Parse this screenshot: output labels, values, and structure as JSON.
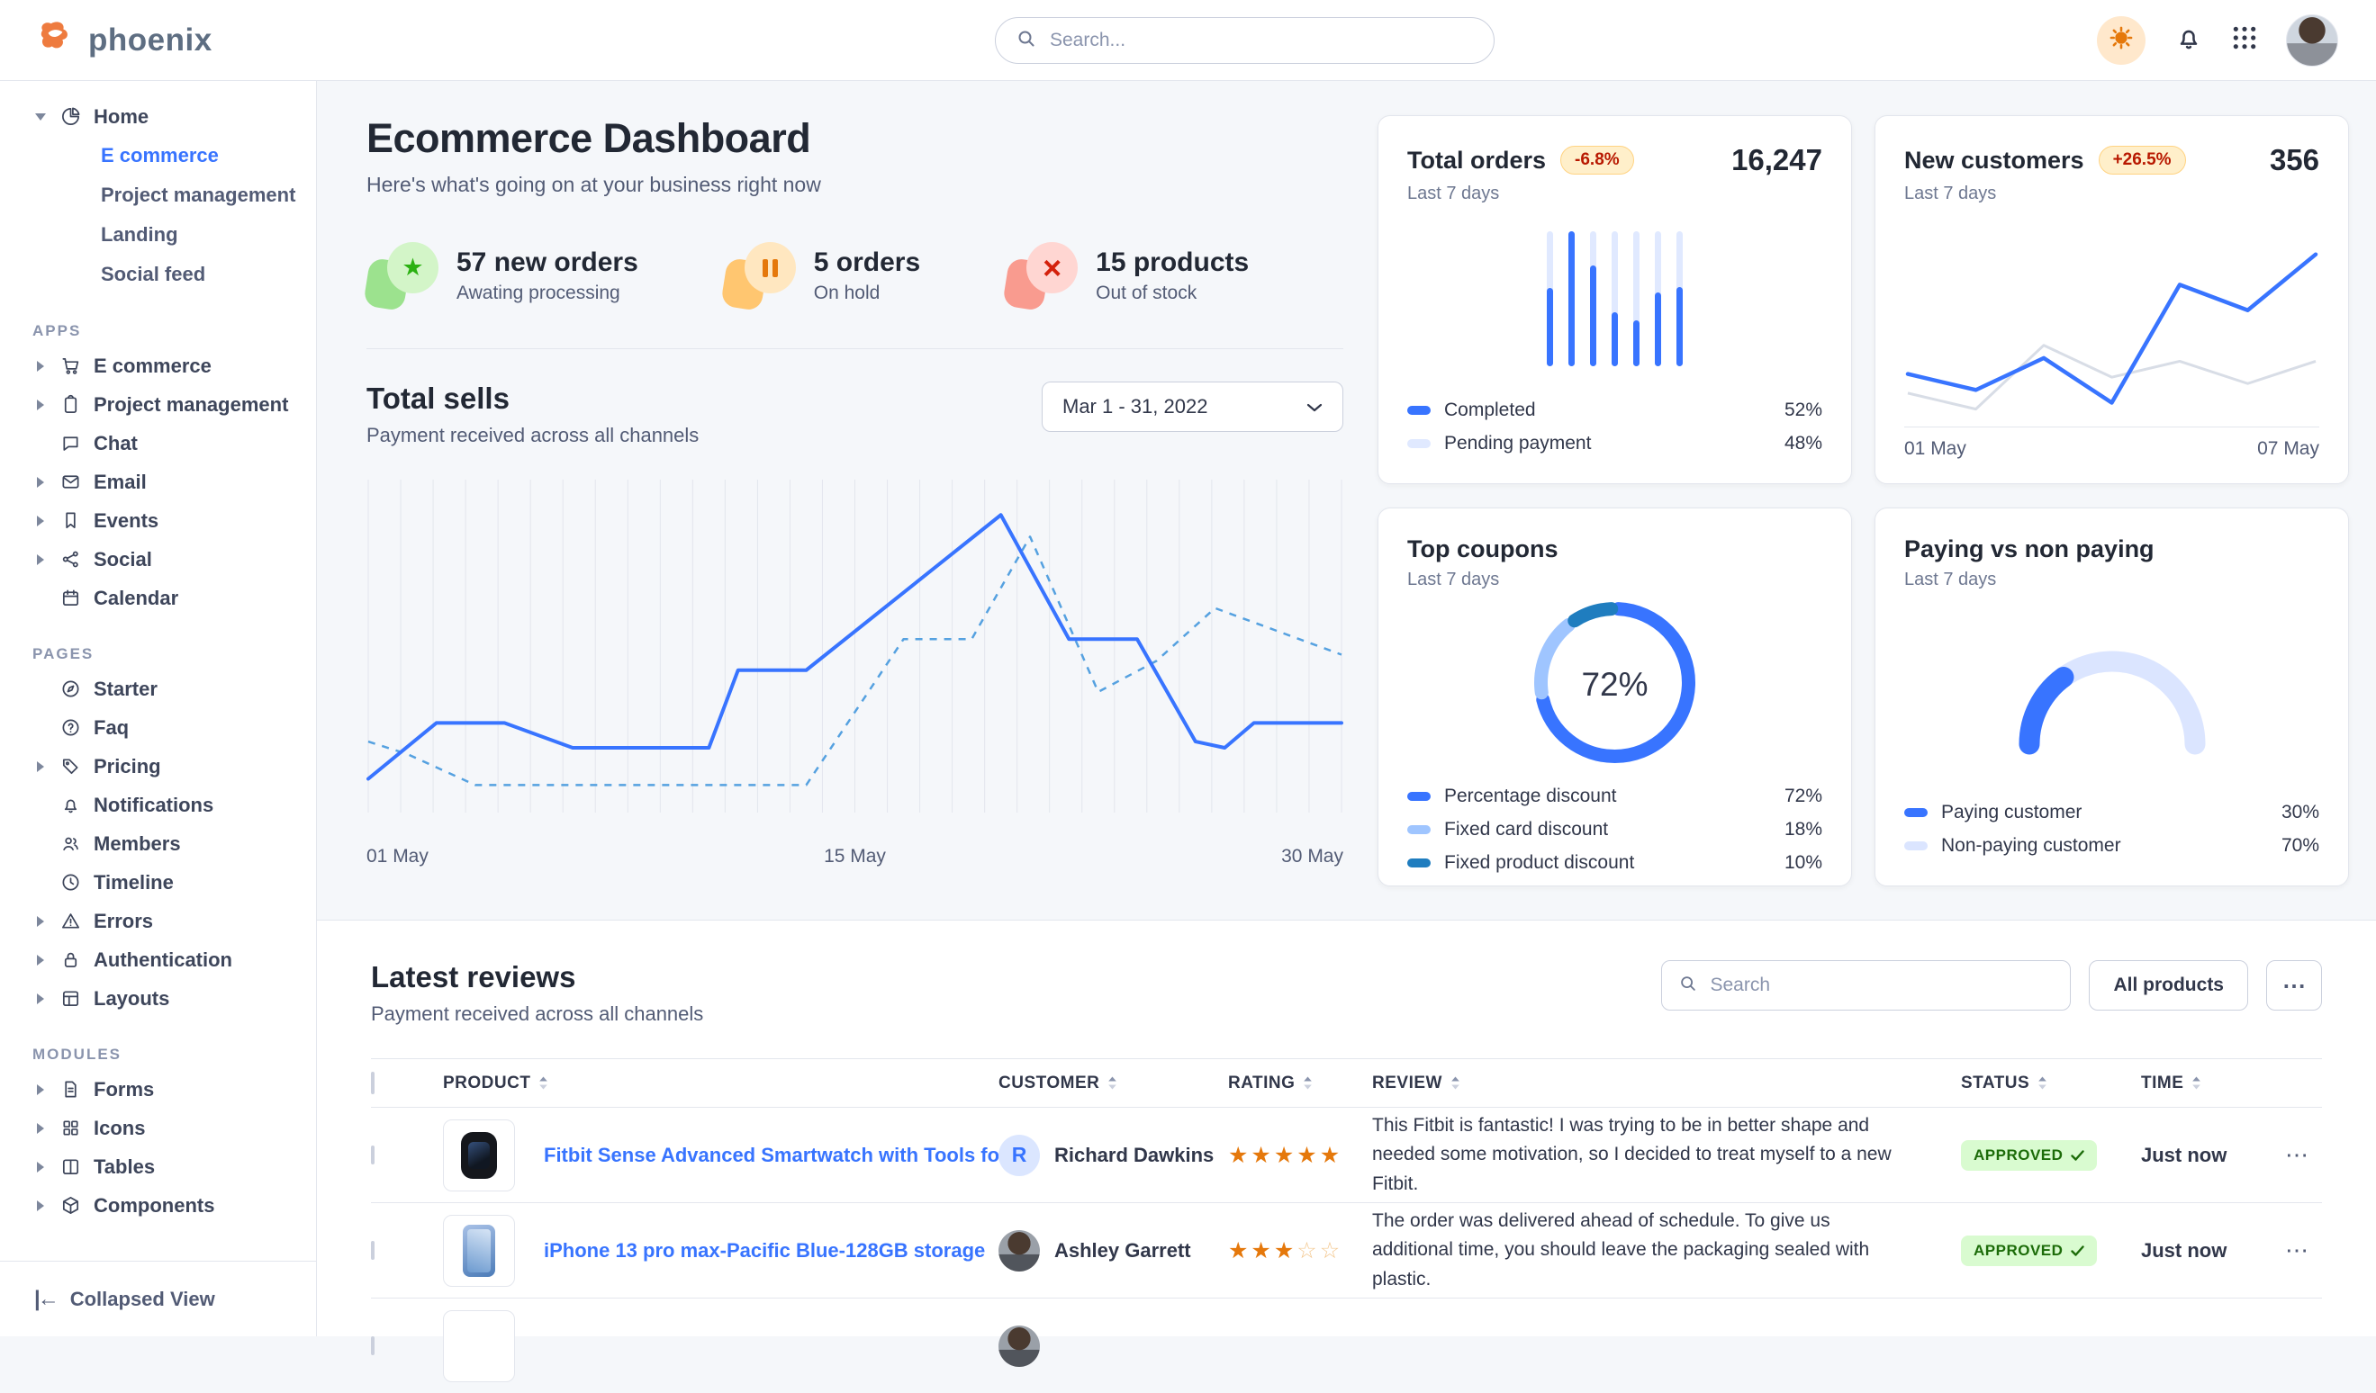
{
  "navbar": {
    "brand": "phoenix",
    "search_placeholder": "Search...",
    "icons": [
      "phoenix-logo",
      "search-icon",
      "sun-icon",
      "bell-icon",
      "apps-grid-icon",
      "avatar"
    ]
  },
  "sidebar": {
    "home": {
      "label": "Home",
      "icon": "pie-chart",
      "children": [
        "E commerce",
        "Project management",
        "Landing",
        "Social feed"
      ],
      "active_child": "E commerce"
    },
    "sections": [
      {
        "label": "APPS",
        "items": [
          {
            "label": "E commerce",
            "icon": "cart",
            "caret": true
          },
          {
            "label": "Project management",
            "icon": "clipboard",
            "caret": true
          },
          {
            "label": "Chat",
            "icon": "chat",
            "caret": false
          },
          {
            "label": "Email",
            "icon": "mail",
            "caret": true
          },
          {
            "label": "Events",
            "icon": "bookmark",
            "caret": true
          },
          {
            "label": "Social",
            "icon": "share",
            "caret": true
          },
          {
            "label": "Calendar",
            "icon": "calendar",
            "caret": false
          }
        ]
      },
      {
        "label": "PAGES",
        "items": [
          {
            "label": "Starter",
            "icon": "compass",
            "caret": false
          },
          {
            "label": "Faq",
            "icon": "help",
            "caret": false
          },
          {
            "label": "Pricing",
            "icon": "tag",
            "caret": true
          },
          {
            "label": "Notifications",
            "icon": "bell",
            "caret": false
          },
          {
            "label": "Members",
            "icon": "users",
            "caret": false
          },
          {
            "label": "Timeline",
            "icon": "clock",
            "caret": false
          },
          {
            "label": "Errors",
            "icon": "warning",
            "caret": true
          },
          {
            "label": "Authentication",
            "icon": "lock",
            "caret": true
          },
          {
            "label": "Layouts",
            "icon": "layout",
            "caret": true
          }
        ]
      },
      {
        "label": "MODULES",
        "items": [
          {
            "label": "Forms",
            "icon": "file",
            "caret": true
          },
          {
            "label": "Icons",
            "icon": "gridic",
            "caret": true
          },
          {
            "label": "Tables",
            "icon": "columns",
            "caret": true
          },
          {
            "label": "Components",
            "icon": "box",
            "caret": true
          }
        ]
      }
    ],
    "collapsed_label": "Collapsed View"
  },
  "header": {
    "title": "Ecommerce Dashboard",
    "subtitle": "Here's what's going on at your business right now"
  },
  "stats": [
    {
      "value": "57 new orders",
      "label": "Awating processing",
      "icon": "star",
      "color": "green"
    },
    {
      "value": "5 orders",
      "label": "On hold",
      "icon": "pause",
      "color": "orange"
    },
    {
      "value": "15 products",
      "label": "Out of stock",
      "icon": "x",
      "color": "red"
    }
  ],
  "total_sells": {
    "title": "Total sells",
    "subtitle": "Payment received across all channels",
    "range_label": "Mar 1 - 31, 2022",
    "x_labels": [
      "01 May",
      "15 May",
      "30 May"
    ],
    "chart": {
      "type": "line",
      "gridlines": 30,
      "solid_color": "#3874ff",
      "dashed_color": "#55a1e0",
      "solid": [
        [
          0,
          10
        ],
        [
          7,
          28
        ],
        [
          14,
          28
        ],
        [
          21,
          20
        ],
        [
          35,
          20
        ],
        [
          38,
          45
        ],
        [
          45,
          45
        ],
        [
          65,
          95
        ],
        [
          72,
          55
        ],
        [
          79,
          55
        ],
        [
          85,
          22
        ],
        [
          88,
          20
        ],
        [
          91,
          28
        ],
        [
          100,
          28
        ]
      ],
      "dashed": [
        [
          0,
          22
        ],
        [
          4,
          18
        ],
        [
          11,
          8
        ],
        [
          45,
          8
        ],
        [
          55,
          55
        ],
        [
          62,
          55
        ],
        [
          68,
          88
        ],
        [
          75,
          38
        ],
        [
          81,
          48
        ],
        [
          87,
          65
        ],
        [
          100,
          50
        ]
      ]
    }
  },
  "cards": {
    "total_orders": {
      "title": "Total orders",
      "badge": "-6.8%",
      "period": "Last 7 days",
      "value": "16,247",
      "chart": {
        "type": "bar",
        "completed": [
          58,
          100,
          75,
          40,
          34,
          55,
          59
        ],
        "background": 100,
        "completed_color": "#3874ff",
        "background_color": "#e0e9ff"
      },
      "legend": [
        {
          "label": "Completed",
          "value": "52%",
          "color": "#3874ff"
        },
        {
          "label": "Pending payment",
          "value": "48%",
          "color": "#e0e9ff"
        }
      ]
    },
    "new_customers": {
      "title": "New customers",
      "badge": "+26.5%",
      "period": "Last 7 days",
      "value": "356",
      "chart": {
        "type": "line",
        "blue": [
          22,
          12,
          32,
          4,
          78,
          62,
          97
        ],
        "gray": [
          10,
          0,
          40,
          20,
          30,
          16,
          30
        ],
        "blue_color": "#3874ff",
        "gray_color": "#d8dde6"
      },
      "x_labels": [
        "01 May",
        "07 May"
      ]
    },
    "top_coupons": {
      "title": "Top coupons",
      "period": "Last 7 days",
      "center_label": "72%",
      "chart": {
        "type": "donut",
        "segments": [
          {
            "label": "Percentage discount",
            "value": 72,
            "display": "72%",
            "color": "#3874ff"
          },
          {
            "label": "Fixed card discount",
            "value": 18,
            "display": "18%",
            "color": "#9fc5ff"
          },
          {
            "label": "Fixed product discount",
            "value": 10,
            "display": "10%",
            "color": "#1f7dbf"
          }
        ]
      }
    },
    "paying": {
      "title": "Paying vs non paying",
      "period": "Last 7 days",
      "chart": {
        "type": "gauge",
        "segments": [
          {
            "label": "Paying customer",
            "value": 30,
            "display": "30%",
            "color": "#3874ff"
          },
          {
            "label": "Non-paying customer",
            "value": 70,
            "display": "70%",
            "color": "#dbe5ff"
          }
        ]
      }
    }
  },
  "reviews": {
    "title": "Latest reviews",
    "subtitle": "Payment received across all channels",
    "search_placeholder": "Search",
    "all_products_label": "All products",
    "more_label": "⋯",
    "columns": [
      "PRODUCT",
      "CUSTOMER",
      "RATING",
      "REVIEW",
      "STATUS",
      "TIME"
    ],
    "rows": [
      {
        "product": "Fitbit Sense Advanced Smartwatch with Tools fo...",
        "product_image": "smartwatch",
        "customer": "Richard Dawkins",
        "avatar": {
          "type": "initial",
          "text": "R"
        },
        "rating": 5,
        "rating_max": 5,
        "review": "This Fitbit is fantastic! I was trying to be in better shape and needed some motivation, so I decided to treat myself to a new Fitbit.",
        "status": "APPROVED",
        "time": "Just now"
      },
      {
        "product": "iPhone 13 pro max-Pacific Blue-128GB storage",
        "product_image": "iphone",
        "customer": "Ashley Garrett",
        "avatar": {
          "type": "photo"
        },
        "rating": 3,
        "rating_max": 5,
        "review": "The order was delivered ahead of schedule. To give us additional time, you should leave the packaging sealed with plastic.",
        "status": "APPROVED",
        "time": "Just now"
      },
      {
        "product": "",
        "product_image": "blank",
        "customer": "",
        "avatar": {
          "type": "photo"
        },
        "rating": 0,
        "rating_max": 5,
        "review": "",
        "status": "",
        "time": "",
        "partial": true
      }
    ]
  }
}
